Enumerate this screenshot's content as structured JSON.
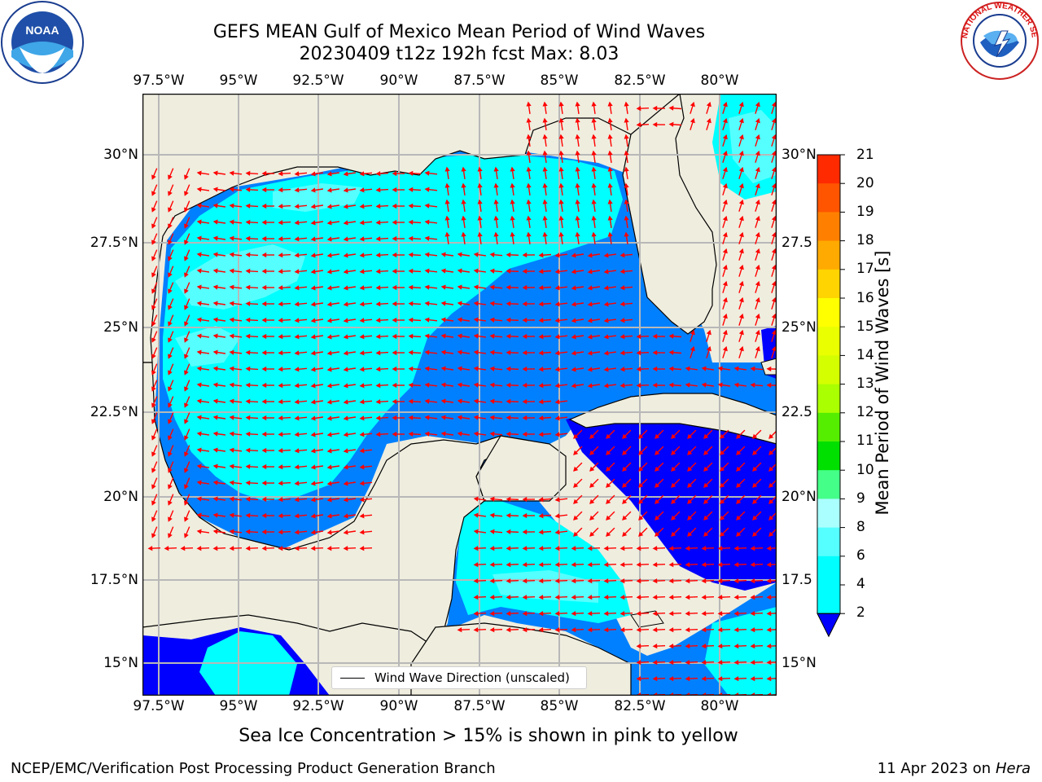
{
  "title": {
    "line1": "GEFS MEAN Gulf of Mexico Mean Period of Wind Waves",
    "line2": "20230409 t12z 192h fcst   Max: 8.03"
  },
  "logos": {
    "left": {
      "icon": "noaa-logo",
      "text": "NOAA"
    },
    "right": {
      "icon": "nws-logo",
      "text": "NATIONAL WEATHER SERVICE"
    }
  },
  "map": {
    "lon_ticks": [
      "97.5°W",
      "95°W",
      "92.5°W",
      "90°W",
      "87.5°W",
      "85°W",
      "82.5°W",
      "80°W"
    ],
    "lat_ticks_left": [
      "30°N",
      "27.5°N",
      "25°N",
      "22.5°N",
      "20°N",
      "17.5°N",
      "15°N"
    ],
    "lat_ticks_right": [
      "30°N",
      "27.5",
      "25°N",
      "22.5",
      "20°N",
      "17.5",
      "15°N"
    ],
    "legend_label": "Wind Wave Direction (unscaled)",
    "land_color": "#efedde",
    "arrow_color": "#ff0000"
  },
  "colorbar": {
    "label": "Mean Period of Wind Waves [s]",
    "ticks": [
      "21",
      "20",
      "19",
      "18",
      "17",
      "16",
      "15",
      "14",
      "13",
      "12",
      "11",
      "10",
      "9",
      "8",
      "6",
      "4",
      "2"
    ],
    "colors": [
      "#ff0000",
      "#ff2a00",
      "#ff5500",
      "#ff8000",
      "#ffaa00",
      "#ffd400",
      "#ffff00",
      "#eaff00",
      "#d4ff00",
      "#aaff00",
      "#55ee00",
      "#00e000",
      "#44ff88",
      "#aaffff",
      "#55ffff",
      "#00ffff",
      "#00ffff",
      "#0080ff",
      "#0000ff"
    ]
  },
  "chart_data": {
    "type": "heatmap",
    "variable": "Mean Period of Wind Waves [s]",
    "max": 8.03,
    "levels": [
      2,
      4,
      6,
      8,
      9,
      10,
      11,
      12,
      13,
      14,
      15,
      16,
      17,
      18,
      19,
      20,
      21
    ],
    "lon_range": [
      -98,
      -78.3
    ],
    "lat_range": [
      14,
      31.8
    ]
  },
  "notes": {
    "ice": "Sea Ice Concentration > 15% is shown in pink to yellow",
    "credit": "NCEP/EMC/Verification Post Processing Product Generation Branch",
    "date": "11 Apr 2023 on",
    "machine": "Hera"
  }
}
